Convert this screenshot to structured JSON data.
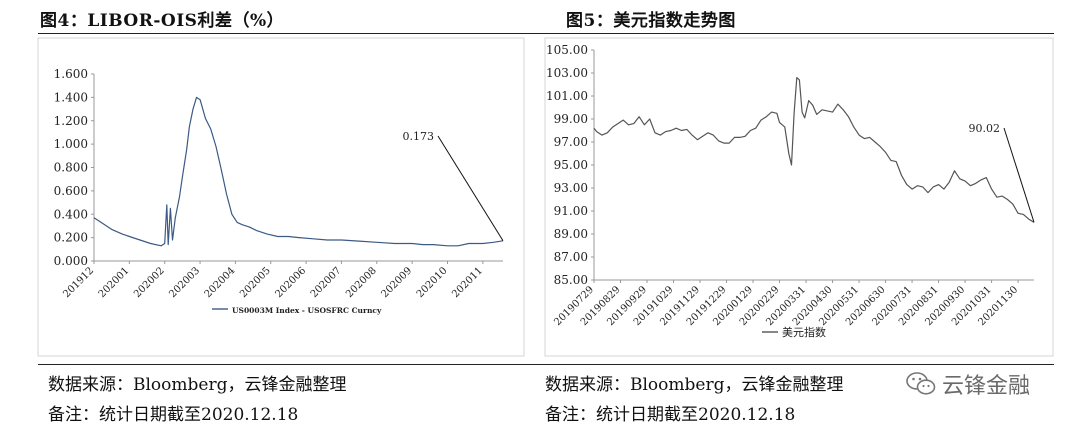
{
  "panel_left": {
    "title": "图4：LIBOR-OIS利差（%）",
    "source": "数据来源：Bloomberg，云锋金融整理",
    "note": "备注：统计日期截至2020.12.18"
  },
  "panel_right": {
    "title": "图5：美元指数走势图",
    "source": "数据来源：Bloomberg，云锋金融整理",
    "note": "备注：统计日期截至2020.12.18"
  },
  "watermark": {
    "text": "云锋金融",
    "icon": "wechat-icon"
  },
  "chart_data": [
    {
      "type": "line",
      "title": "",
      "xlabel": "",
      "ylabel": "",
      "ylim": [
        0,
        1.6
      ],
      "yticks": [
        "0.000",
        "0.200",
        "0.400",
        "0.600",
        "0.800",
        "1.000",
        "1.200",
        "1.400",
        "1.600"
      ],
      "xticks": [
        "201912",
        "202001",
        "202002",
        "202003",
        "202004",
        "202005",
        "202006",
        "202007",
        "202008",
        "202009",
        "202010",
        "202011"
      ],
      "grid": false,
      "legend": "bottom",
      "annotation": {
        "text": "0.173",
        "x": "20201218",
        "y": 0.173
      },
      "series": [
        {
          "name": "US0003M Index - USOSFRC Curncy",
          "color": "#3b5a85",
          "x": [
            0,
            0.2,
            0.5,
            0.8,
            1.0,
            1.3,
            1.6,
            1.9,
            2.0,
            2.06,
            2.1,
            2.16,
            2.22,
            2.3,
            2.42,
            2.5,
            2.62,
            2.7,
            2.8,
            2.9,
            3.0,
            3.05,
            3.15,
            3.3,
            3.45,
            3.6,
            3.75,
            3.9,
            4.05,
            4.2,
            4.4,
            4.6,
            4.9,
            5.2,
            5.5,
            5.8,
            6.2,
            6.6,
            7.0,
            7.5,
            8.0,
            8.5,
            9.0,
            9.3,
            9.6,
            10.0,
            10.3,
            10.6,
            11.0,
            11.3,
            11.57
          ],
          "y": [
            0.37,
            0.33,
            0.27,
            0.23,
            0.21,
            0.18,
            0.15,
            0.13,
            0.15,
            0.48,
            0.14,
            0.45,
            0.18,
            0.37,
            0.55,
            0.72,
            0.95,
            1.15,
            1.3,
            1.4,
            1.38,
            1.33,
            1.22,
            1.13,
            0.98,
            0.78,
            0.57,
            0.4,
            0.33,
            0.31,
            0.29,
            0.26,
            0.23,
            0.21,
            0.21,
            0.2,
            0.19,
            0.18,
            0.18,
            0.17,
            0.16,
            0.15,
            0.15,
            0.14,
            0.14,
            0.13,
            0.13,
            0.15,
            0.15,
            0.16,
            0.173
          ]
        }
      ]
    },
    {
      "type": "line",
      "title": "",
      "xlabel": "",
      "ylabel": "",
      "ylim": [
        85,
        105
      ],
      "yticks": [
        "85.00",
        "87.00",
        "89.00",
        "91.00",
        "93.00",
        "95.00",
        "97.00",
        "99.00",
        "101.00",
        "103.00",
        "105.00"
      ],
      "xticks": [
        "20190729",
        "20190829",
        "20190929",
        "20191029",
        "20191129",
        "20191229",
        "20200129",
        "20200229",
        "20200331",
        "20200430",
        "20200531",
        "20200630",
        "20200731",
        "20200831",
        "20200930",
        "20201031",
        "20201130"
      ],
      "grid": false,
      "legend": "bottom",
      "annotation": {
        "text": "90.02",
        "x": "20201218",
        "y": 90.02
      },
      "series": [
        {
          "name": "美元指数",
          "color": "#555555",
          "x": [
            0,
            0.1,
            0.3,
            0.5,
            0.7,
            0.9,
            1.1,
            1.3,
            1.5,
            1.7,
            1.9,
            2.1,
            2.3,
            2.5,
            2.7,
            2.9,
            3.1,
            3.3,
            3.5,
            3.7,
            3.9,
            4.1,
            4.3,
            4.5,
            4.7,
            4.9,
            5.1,
            5.3,
            5.5,
            5.7,
            5.9,
            6.1,
            6.3,
            6.5,
            6.7,
            6.9,
            7.0,
            7.2,
            7.35,
            7.45,
            7.55,
            7.65,
            7.75,
            7.85,
            7.95,
            8.1,
            8.25,
            8.4,
            8.6,
            8.8,
            9.0,
            9.2,
            9.4,
            9.6,
            9.8,
            10.0,
            10.2,
            10.4,
            10.6,
            10.8,
            11.0,
            11.2,
            11.4,
            11.6,
            11.8,
            12.0,
            12.2,
            12.4,
            12.6,
            12.8,
            13.0,
            13.2,
            13.4,
            13.6,
            13.8,
            14.0,
            14.2,
            14.4,
            14.6,
            14.8,
            15.0,
            15.2,
            15.4,
            15.6,
            15.8,
            16.0,
            16.2,
            16.4,
            16.6
          ],
          "y": [
            98.2,
            97.9,
            97.6,
            97.8,
            98.3,
            98.6,
            98.9,
            98.5,
            98.6,
            99.2,
            98.5,
            99.0,
            97.8,
            97.6,
            97.9,
            98.0,
            98.2,
            98.0,
            98.1,
            97.6,
            97.2,
            97.5,
            97.8,
            97.6,
            97.1,
            96.9,
            96.9,
            97.4,
            97.4,
            97.5,
            98.0,
            98.2,
            98.9,
            99.2,
            99.6,
            99.5,
            98.7,
            98.3,
            96.0,
            95.0,
            99.5,
            102.6,
            102.4,
            99.6,
            99.1,
            100.6,
            100.2,
            99.4,
            99.8,
            99.7,
            99.6,
            100.3,
            99.8,
            99.2,
            98.3,
            97.6,
            97.3,
            97.4,
            97.0,
            96.6,
            96.1,
            95.4,
            95.3,
            94.1,
            93.3,
            92.9,
            93.2,
            93.1,
            92.6,
            93.1,
            93.3,
            92.9,
            93.5,
            94.5,
            93.8,
            93.6,
            93.2,
            93.4,
            93.7,
            93.9,
            92.9,
            92.2,
            92.3,
            92.0,
            91.6,
            90.8,
            90.7,
            90.3,
            90.02
          ]
        }
      ]
    }
  ]
}
